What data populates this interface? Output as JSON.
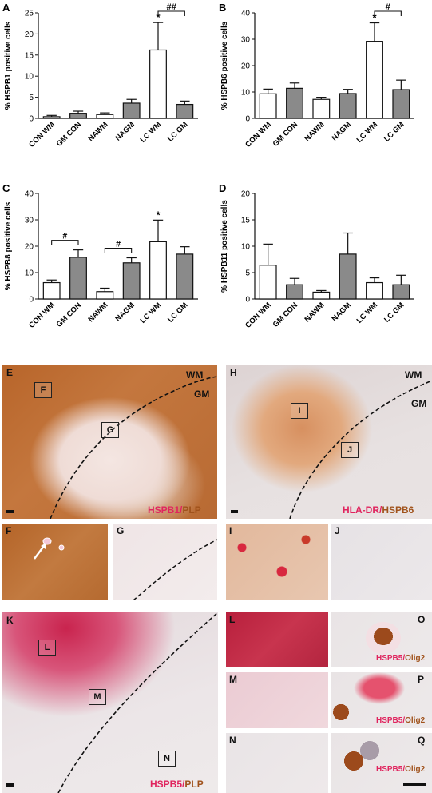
{
  "chart_data": [
    {
      "type": "bar",
      "panel": "A",
      "ylabel": "% HSPB1 positive cells",
      "categories": [
        "CON WM",
        "GM CON",
        "NAWM",
        "NAGM",
        "LC WM",
        "LC GM"
      ],
      "values": [
        0.4,
        1.2,
        0.9,
        3.6,
        16.2,
        3.3
      ],
      "errors": [
        0.3,
        0.5,
        0.4,
        0.9,
        6.5,
        0.8
      ],
      "fills": [
        "white",
        "gray",
        "white",
        "gray",
        "white",
        "gray"
      ],
      "ylim": [
        0,
        25
      ],
      "yticks": [
        "0",
        "5",
        "10",
        "15",
        "20",
        "25"
      ],
      "annotations": [
        {
          "text": "*",
          "at": "LC WM"
        },
        {
          "text": "##",
          "from": "LC WM",
          "to": "LC GM"
        }
      ]
    },
    {
      "type": "bar",
      "panel": "B",
      "ylabel": "% HSPB6 positive cells",
      "categories": [
        "CON WM",
        "GM CON",
        "NAWM",
        "NAGM",
        "LC WM",
        "LC GM"
      ],
      "values": [
        9.3,
        11.4,
        7.2,
        9.4,
        29.2,
        10.9
      ],
      "errors": [
        1.8,
        2.0,
        0.8,
        1.6,
        7.0,
        3.6
      ],
      "fills": [
        "white",
        "gray",
        "white",
        "gray",
        "white",
        "gray"
      ],
      "ylim": [
        0,
        40
      ],
      "yticks": [
        "0",
        "10",
        "20",
        "30",
        "40"
      ],
      "annotations": [
        {
          "text": "*",
          "at": "LC WM"
        },
        {
          "text": "#",
          "from": "LC WM",
          "to": "LC GM"
        }
      ]
    },
    {
      "type": "bar",
      "panel": "C",
      "ylabel": "% HSPB8 positive cells",
      "categories": [
        "CON WM",
        "GM CON",
        "NAWM",
        "NAGM",
        "LC WM",
        "LC GM"
      ],
      "values": [
        6.2,
        15.8,
        2.8,
        13.7,
        21.7,
        17.0
      ],
      "errors": [
        1.0,
        2.8,
        1.3,
        1.9,
        8.2,
        2.8
      ],
      "fills": [
        "white",
        "gray",
        "white",
        "gray",
        "white",
        "gray"
      ],
      "ylim": [
        0,
        40
      ],
      "yticks": [
        "0",
        "10",
        "20",
        "30",
        "40"
      ],
      "annotations": [
        {
          "text": "#",
          "from": "CON WM",
          "to": "GM CON"
        },
        {
          "text": "#",
          "from": "NAWM",
          "to": "NAGM"
        },
        {
          "text": "*",
          "at": "LC WM"
        }
      ]
    },
    {
      "type": "bar",
      "panel": "D",
      "ylabel": "% HSPB11 positive cells",
      "categories": [
        "CON WM",
        "GM CON",
        "NAWM",
        "NAGM",
        "LC WM",
        "LC GM"
      ],
      "values": [
        6.4,
        2.7,
        1.3,
        8.5,
        3.1,
        2.7
      ],
      "errors": [
        4.0,
        1.2,
        0.3,
        4.0,
        0.9,
        1.8
      ],
      "fills": [
        "white",
        "gray",
        "white",
        "gray",
        "white",
        "gray"
      ],
      "ylim": [
        0,
        20
      ],
      "yticks": [
        "0",
        "5",
        "10",
        "15",
        "20"
      ],
      "annotations": []
    }
  ],
  "micrographs": {
    "E": {
      "label": "E",
      "wm": "WM",
      "gm": "GM",
      "boxes": [
        "F",
        "G"
      ],
      "stain_a": "HSPB1",
      "sep": "/",
      "stain_b": "PLP"
    },
    "H": {
      "label": "H",
      "wm": "WM",
      "gm": "GM",
      "boxes": [
        "I",
        "J"
      ],
      "stain_a": "HLA-DR",
      "sep": "/",
      "stain_b": "HSPB6"
    },
    "F": {
      "label": "F"
    },
    "G": {
      "label": "G"
    },
    "I": {
      "label": "I"
    },
    "J": {
      "label": "J"
    },
    "K": {
      "label": "K",
      "boxes": [
        "L",
        "M",
        "N"
      ],
      "stain_a": "HSPB5",
      "sep": "/",
      "stain_b": "PLP"
    },
    "L": {
      "label": "L"
    },
    "M": {
      "label": "M"
    },
    "N": {
      "label": "N"
    },
    "O": {
      "label": "O",
      "stain_a": "HSPB5",
      "sep": "/",
      "stain_b": "Olig2"
    },
    "P": {
      "label": "P",
      "stain_a": "HSPB5",
      "sep": "/",
      "stain_b": "Olig2"
    },
    "Q": {
      "label": "Q",
      "stain_a": "HSPB5",
      "sep": "/",
      "stain_b": "Olig2"
    }
  }
}
